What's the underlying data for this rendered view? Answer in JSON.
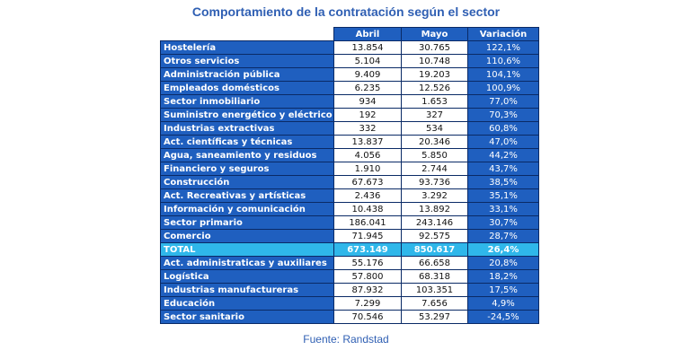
{
  "chart_data": {
    "type": "table",
    "title": "Comportamiento de la contratación según el sector",
    "columns": [
      "Abril",
      "Mayo",
      "Variación"
    ],
    "rows": [
      {
        "sector": "Hostelería",
        "abril": "13.854",
        "mayo": "30.765",
        "variacion": "122,1%"
      },
      {
        "sector": "Otros servicios",
        "abril": "5.104",
        "mayo": "10.748",
        "variacion": "110,6%"
      },
      {
        "sector": "Administración pública",
        "abril": "9.409",
        "mayo": "19.203",
        "variacion": "104,1%"
      },
      {
        "sector": "Empleados domésticos",
        "abril": "6.235",
        "mayo": "12.526",
        "variacion": "100,9%"
      },
      {
        "sector": "Sector inmobiliario",
        "abril": "934",
        "mayo": "1.653",
        "variacion": "77,0%"
      },
      {
        "sector": "Suministro energético y eléctrico",
        "abril": "192",
        "mayo": "327",
        "variacion": "70,3%"
      },
      {
        "sector": "Industrias extractivas",
        "abril": "332",
        "mayo": "534",
        "variacion": "60,8%"
      },
      {
        "sector": "Act. científicas y técnicas",
        "abril": "13.837",
        "mayo": "20.346",
        "variacion": "47,0%"
      },
      {
        "sector": "Agua, saneamiento y residuos",
        "abril": "4.056",
        "mayo": "5.850",
        "variacion": "44,2%"
      },
      {
        "sector": "Financiero y seguros",
        "abril": "1.910",
        "mayo": "2.744",
        "variacion": "43,7%"
      },
      {
        "sector": "Construcción",
        "abril": "67.673",
        "mayo": "93.736",
        "variacion": "38,5%"
      },
      {
        "sector": "Act. Recreativas y artísticas",
        "abril": "2.436",
        "mayo": "3.292",
        "variacion": "35,1%"
      },
      {
        "sector": "Información y comunicación",
        "abril": "10.438",
        "mayo": "13.892",
        "variacion": "33,1%"
      },
      {
        "sector": "Sector primario",
        "abril": "186.041",
        "mayo": "243.146",
        "variacion": "30,7%"
      },
      {
        "sector": "Comercio",
        "abril": "71.945",
        "mayo": "92.575",
        "variacion": "28,7%"
      },
      {
        "sector": "TOTAL",
        "abril": "673.149",
        "mayo": "850.617",
        "variacion": "26,4%",
        "total": true
      },
      {
        "sector": "Act. administraticas y auxiliares",
        "abril": "55.176",
        "mayo": "66.658",
        "variacion": "20,8%"
      },
      {
        "sector": "Logística",
        "abril": "57.800",
        "mayo": "68.318",
        "variacion": "18,2%"
      },
      {
        "sector": "Industrias manufactureras",
        "abril": "87.932",
        "mayo": "103.351",
        "variacion": "17,5%"
      },
      {
        "sector": "Educación",
        "abril": "7.299",
        "mayo": "7.656",
        "variacion": "4,9%"
      },
      {
        "sector": "Sector sanitario",
        "abril": "70.546",
        "mayo": "53.297",
        "variacion": "-24,5%"
      }
    ],
    "source": "Fuente: Randstad"
  }
}
